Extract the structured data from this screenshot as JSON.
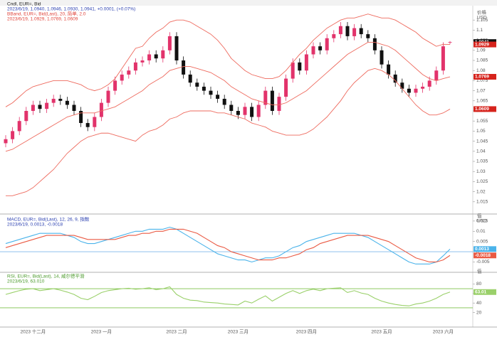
{
  "chart_data": [
    {
      "type": "candlestick",
      "headers": [
        {
          "text": "Cndl, EUR=, Bid",
          "color": "#222222"
        },
        {
          "text": "2023/6/19, 1.0940, 1.0946, 1.0930, 1.0941, +0.0001, (+0.07%)",
          "color": "#2a3fb0"
        },
        {
          "text": "BBand, EUR=, Bid(Last), 20, 简单, 2.0",
          "color": "#e0433a"
        },
        {
          "text": "2023/6/19, 1.0929, 1.0769, 1.0609",
          "color": "#e0433a"
        }
      ],
      "axis_title": "价格",
      "axis_unit": "USD",
      "categories": [
        null,
        null,
        null,
        null,
        "2023 十二月",
        null,
        null,
        null,
        null,
        null,
        null,
        null,
        null,
        null,
        "2023 一月",
        null,
        null,
        null,
        null,
        null,
        null,
        null,
        null,
        null,
        null,
        "2023 二月",
        null,
        null,
        null,
        null,
        null,
        null,
        null,
        null,
        "2023 三月",
        null,
        null,
        null,
        null,
        null,
        null,
        null,
        null,
        null,
        "2023 四月",
        null,
        null,
        null,
        null,
        null,
        null,
        null,
        null,
        null,
        null,
        "2023 五月",
        null,
        null,
        null,
        null,
        null,
        null,
        null,
        null,
        "2023 六月",
        null
      ],
      "open": [
        1.044,
        1.046,
        1.05,
        1.055,
        1.06,
        1.063,
        1.061,
        1.064,
        1.066,
        1.065,
        1.063,
        1.06,
        1.054,
        1.052,
        1.057,
        1.064,
        1.07,
        1.075,
        1.078,
        1.08,
        1.084,
        1.085,
        1.088,
        1.086,
        1.09,
        1.097,
        1.085,
        1.078,
        1.074,
        1.072,
        1.07,
        1.068,
        1.066,
        1.063,
        1.06,
        1.058,
        1.062,
        1.057,
        1.063,
        1.07,
        1.06,
        1.067,
        1.076,
        1.084,
        1.08,
        1.088,
        1.092,
        1.09,
        1.096,
        1.098,
        1.102,
        1.097,
        1.101,
        1.098,
        1.096,
        1.09,
        1.083,
        1.078,
        1.074,
        1.071,
        1.069,
        1.071,
        1.072,
        1.075,
        1.08,
        1.094
      ],
      "high": [
        1.048,
        1.052,
        1.057,
        1.062,
        1.065,
        1.065,
        1.066,
        1.068,
        1.068,
        1.067,
        1.065,
        1.062,
        1.056,
        1.059,
        1.066,
        1.072,
        1.077,
        1.08,
        1.082,
        1.086,
        1.087,
        1.09,
        1.09,
        1.092,
        1.099,
        1.099,
        1.087,
        1.08,
        1.076,
        1.074,
        1.072,
        1.07,
        1.068,
        1.065,
        1.062,
        1.064,
        1.064,
        1.065,
        1.072,
        1.072,
        1.069,
        1.078,
        1.086,
        1.086,
        1.09,
        1.094,
        1.094,
        1.098,
        1.1,
        1.104,
        1.104,
        1.103,
        1.103,
        1.1,
        1.098,
        1.092,
        1.085,
        1.08,
        1.076,
        1.073,
        1.073,
        1.074,
        1.077,
        1.082,
        1.094,
        1.0946
      ],
      "low": [
        1.042,
        1.044,
        1.048,
        1.053,
        1.058,
        1.059,
        1.059,
        1.062,
        1.063,
        1.061,
        1.058,
        1.052,
        1.05,
        1.05,
        1.055,
        1.062,
        1.068,
        1.073,
        1.076,
        1.078,
        1.082,
        1.083,
        1.084,
        1.084,
        1.088,
        1.083,
        1.076,
        1.072,
        1.07,
        1.068,
        1.066,
        1.064,
        1.061,
        1.058,
        1.056,
        1.056,
        1.055,
        1.055,
        1.061,
        1.058,
        1.058,
        1.065,
        1.074,
        1.078,
        1.078,
        1.086,
        1.088,
        1.088,
        1.094,
        1.096,
        1.095,
        1.095,
        1.096,
        1.094,
        1.088,
        1.081,
        1.076,
        1.072,
        1.069,
        1.067,
        1.067,
        1.069,
        1.07,
        1.073,
        1.078,
        1.093
      ],
      "close": [
        1.046,
        1.05,
        1.055,
        1.06,
        1.063,
        1.061,
        1.064,
        1.066,
        1.065,
        1.063,
        1.06,
        1.054,
        1.052,
        1.057,
        1.064,
        1.07,
        1.075,
        1.078,
        1.08,
        1.084,
        1.085,
        1.088,
        1.086,
        1.09,
        1.097,
        1.085,
        1.078,
        1.074,
        1.072,
        1.07,
        1.068,
        1.066,
        1.063,
        1.06,
        1.058,
        1.062,
        1.057,
        1.063,
        1.07,
        1.06,
        1.067,
        1.076,
        1.084,
        1.08,
        1.088,
        1.092,
        1.09,
        1.096,
        1.098,
        1.102,
        1.097,
        1.101,
        1.098,
        1.096,
        1.09,
        1.083,
        1.078,
        1.074,
        1.071,
        1.069,
        1.071,
        1.072,
        1.075,
        1.08,
        1.092,
        1.0941
      ],
      "up_color": "#e2336b",
      "down_color": "#111111",
      "bands": {
        "color": "#ee6a5e",
        "upper": [
          1.062,
          1.064,
          1.067,
          1.07,
          1.072,
          1.073,
          1.074,
          1.075,
          1.075,
          1.075,
          1.074,
          1.073,
          1.071,
          1.07,
          1.071,
          1.073,
          1.076,
          1.081,
          1.086,
          1.091,
          1.092,
          1.096,
          1.099,
          1.101,
          1.104,
          1.105,
          1.105,
          1.104,
          1.102,
          1.1,
          1.098,
          1.095,
          1.091,
          1.086,
          1.083,
          1.08,
          1.078,
          1.077,
          1.076,
          1.076,
          1.077,
          1.08,
          1.084,
          1.088,
          1.091,
          1.095,
          1.098,
          1.101,
          1.103,
          1.105,
          1.106,
          1.106,
          1.107,
          1.108,
          1.107,
          1.106,
          1.106,
          1.105,
          1.103,
          1.101,
          1.099,
          1.096,
          1.094,
          1.092,
          1.093,
          1.0929
        ],
        "middle": [
          1.04,
          1.041,
          1.043,
          1.045,
          1.047,
          1.049,
          1.051,
          1.053,
          1.055,
          1.057,
          1.058,
          1.059,
          1.059,
          1.059,
          1.06,
          1.061,
          1.062,
          1.064,
          1.066,
          1.068,
          1.07,
          1.073,
          1.075,
          1.077,
          1.08,
          1.081,
          1.082,
          1.082,
          1.081,
          1.08,
          1.079,
          1.077,
          1.075,
          1.072,
          1.07,
          1.068,
          1.066,
          1.065,
          1.064,
          1.063,
          1.063,
          1.064,
          1.066,
          1.068,
          1.07,
          1.073,
          1.076,
          1.079,
          1.082,
          1.085,
          1.088,
          1.09,
          1.092,
          1.094,
          1.094,
          1.093,
          1.092,
          1.09,
          1.087,
          1.084,
          1.081,
          1.078,
          1.076,
          1.075,
          1.076,
          1.0769
        ],
        "lower": [
          1.018,
          1.018,
          1.019,
          1.02,
          1.022,
          1.025,
          1.028,
          1.031,
          1.035,
          1.039,
          1.042,
          1.045,
          1.047,
          1.048,
          1.049,
          1.049,
          1.048,
          1.047,
          1.046,
          1.045,
          1.048,
          1.05,
          1.051,
          1.053,
          1.056,
          1.057,
          1.059,
          1.06,
          1.06,
          1.06,
          1.06,
          1.059,
          1.059,
          1.058,
          1.057,
          1.056,
          1.054,
          1.053,
          1.052,
          1.05,
          1.049,
          1.048,
          1.048,
          1.048,
          1.049,
          1.051,
          1.054,
          1.057,
          1.061,
          1.065,
          1.07,
          1.074,
          1.077,
          1.08,
          1.081,
          1.08,
          1.078,
          1.075,
          1.071,
          1.067,
          1.063,
          1.06,
          1.058,
          1.058,
          1.059,
          1.0609
        ]
      },
      "ylim": [
        1.01,
        1.11
      ],
      "yticks": [
        1.015,
        1.02,
        1.025,
        1.03,
        1.035,
        1.04,
        1.045,
        1.05,
        1.055,
        1.06,
        1.065,
        1.07,
        1.075,
        1.08,
        1.085,
        1.09,
        1.095,
        1.1,
        1.105
      ]
    },
    {
      "type": "line",
      "headers": [
        {
          "text": "MACD, EUR=, Bid(Last), 12, 26, 9, 指数",
          "color": "#2a3fb0"
        },
        {
          "text": "2023/6/19, 0.0013, -0.0018",
          "color": "#2a3fb0"
        }
      ],
      "axis_title": "值",
      "axis_unit": "USD",
      "levels": [
        0
      ],
      "level_color": "#7fb8ea",
      "series": [
        {
          "color": "#4ab3ea",
          "values": [
            0.004,
            0.005,
            0.006,
            0.007,
            0.008,
            0.009,
            0.009,
            0.009,
            0.009,
            0.008,
            0.007,
            0.005,
            0.004,
            0.004,
            0.005,
            0.006,
            0.007,
            0.008,
            0.009,
            0.01,
            0.01,
            0.011,
            0.011,
            0.011,
            0.012,
            0.011,
            0.009,
            0.007,
            0.005,
            0.003,
            0.001,
            -0.001,
            -0.002,
            -0.003,
            -0.004,
            -0.004,
            -0.005,
            -0.004,
            -0.003,
            -0.003,
            -0.002,
            0.0,
            0.002,
            0.003,
            0.005,
            0.006,
            0.007,
            0.008,
            0.009,
            0.009,
            0.009,
            0.009,
            0.008,
            0.007,
            0.005,
            0.003,
            0.001,
            -0.001,
            -0.003,
            -0.005,
            -0.006,
            -0.006,
            -0.006,
            -0.005,
            -0.002,
            0.0013
          ]
        },
        {
          "color": "#ea5a43",
          "values": [
            0.002,
            0.003,
            0.004,
            0.005,
            0.006,
            0.007,
            0.008,
            0.008,
            0.008,
            0.008,
            0.008,
            0.007,
            0.006,
            0.006,
            0.006,
            0.006,
            0.006,
            0.007,
            0.008,
            0.008,
            0.009,
            0.009,
            0.01,
            0.01,
            0.011,
            0.011,
            0.011,
            0.01,
            0.009,
            0.007,
            0.005,
            0.003,
            0.002,
            0.0,
            -0.001,
            -0.002,
            -0.003,
            -0.004,
            -0.004,
            -0.004,
            -0.003,
            -0.003,
            -0.002,
            -0.001,
            0.001,
            0.002,
            0.004,
            0.005,
            0.006,
            0.007,
            0.008,
            0.008,
            0.008,
            0.008,
            0.007,
            0.006,
            0.005,
            0.003,
            0.001,
            -0.001,
            -0.003,
            -0.004,
            -0.005,
            -0.005,
            -0.004,
            -0.0018
          ]
        }
      ],
      "ylim": [
        -0.009,
        0.016
      ],
      "yticks": [
        -0.005,
        0,
        0.005,
        0.01,
        0.015
      ]
    },
    {
      "type": "line",
      "headers": [
        {
          "text": "RSI, EUR=, Bid(Last), 14, 威尔德平滑",
          "color": "#4a9a2a"
        },
        {
          "text": "2023/6/19, 63.010",
          "color": "#4a9a2a"
        }
      ],
      "axis_title": "值",
      "levels": [
        30,
        70
      ],
      "level_color": "#7cc04a",
      "series": [
        {
          "color": "#9ad06a",
          "values": [
            58,
            62,
            66,
            69,
            70,
            66,
            68,
            70,
            67,
            63,
            58,
            50,
            47,
            54,
            62,
            66,
            68,
            70,
            71,
            69,
            70,
            72,
            68,
            70,
            74,
            58,
            50,
            46,
            45,
            42,
            41,
            40,
            38,
            37,
            36,
            44,
            40,
            48,
            55,
            44,
            52,
            60,
            66,
            60,
            66,
            69,
            66,
            70,
            71,
            72,
            62,
            66,
            61,
            58,
            50,
            44,
            40,
            37,
            35,
            34,
            38,
            40,
            44,
            50,
            58,
            63.01
          ]
        }
      ],
      "ylim": [
        0,
        100
      ],
      "yticks": [
        20,
        40,
        60,
        80
      ]
    }
  ]
}
